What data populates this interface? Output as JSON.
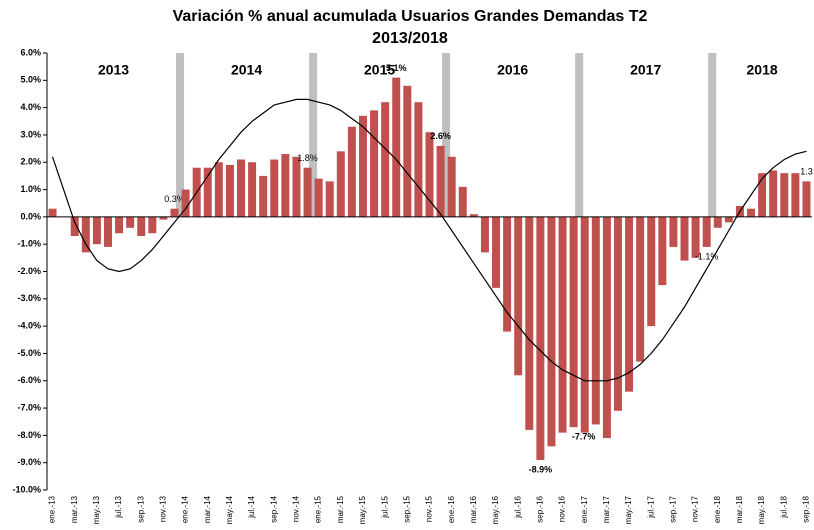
{
  "chart_data": {
    "type": "bar",
    "title": "Variación % anual acumulada Usuarios Grandes Demandas T2",
    "subtitle": "2013/2018",
    "categories": [
      "ene.-13",
      null,
      "mar.-13",
      null,
      "may.-13",
      null,
      "jul.-13",
      null,
      "sep.-13",
      null,
      "nov.-13",
      null,
      "ene.-14",
      null,
      "mar.-14",
      null,
      "may.-14",
      null,
      "jul.-14",
      null,
      "sep.-14",
      null,
      "nov.-14",
      null,
      "ene.-15",
      null,
      "mar.-15",
      null,
      "may.-15",
      null,
      "jul.-15",
      null,
      "sep.-15",
      null,
      "nov.-15",
      null,
      "ene.-16",
      null,
      "mar.-16",
      null,
      "may.-16",
      null,
      "jul.-16",
      null,
      "sep.-16",
      null,
      "nov.-16",
      null,
      "ene.-17",
      null,
      "mar.-17",
      null,
      "may.-17",
      null,
      "jul.-17",
      null,
      "sep.-17",
      null,
      "nov.-17",
      null,
      "ene.-18",
      null,
      "mar.-18",
      null,
      "may.-18",
      null,
      "jul.-18",
      null,
      "sep.-18"
    ],
    "years": [
      "2013",
      "2014",
      "2015",
      "2016",
      "2017",
      "2018"
    ],
    "series": [
      {
        "color": "#c0504d",
        "values": [
          0.3,
          0.0,
          -0.7,
          -1.3,
          -1.0,
          -1.1,
          -0.6,
          -0.4,
          -0.7,
          -0.6,
          -0.1,
          0.3,
          1.0,
          1.8,
          1.8,
          2.0,
          1.9,
          2.1,
          2.0,
          1.5,
          2.1,
          2.3,
          2.2,
          1.8,
          1.4,
          1.3,
          2.4,
          3.3,
          3.7,
          3.9,
          4.2,
          5.1,
          4.8,
          4.2,
          3.1,
          2.6,
          2.2,
          1.1,
          0.1,
          -1.3,
          -2.6,
          -4.2,
          -5.8,
          -7.8,
          -8.9,
          -8.4,
          -7.9,
          -7.7,
          -7.9,
          -7.6,
          -8.1,
          -7.1,
          -6.4,
          -5.3,
          -4.0,
          -2.5,
          -1.1,
          -1.6,
          -1.5,
          -1.1,
          -0.4,
          -0.2,
          0.4,
          0.3,
          1.6,
          1.7,
          1.6,
          1.6,
          1.3
        ],
        "value_labels": [
          null,
          null,
          null,
          null,
          null,
          null,
          null,
          null,
          null,
          null,
          null,
          "0.3%",
          null,
          null,
          null,
          null,
          null,
          null,
          null,
          null,
          null,
          null,
          null,
          "1.8%",
          null,
          null,
          null,
          null,
          null,
          null,
          null,
          "5.1%",
          null,
          null,
          null,
          "2.6%",
          null,
          null,
          null,
          null,
          null,
          null,
          null,
          null,
          "-8.9%",
          null,
          null,
          "-7.7%",
          null,
          null,
          null,
          null,
          null,
          null,
          null,
          null,
          null,
          null,
          null,
          "-1.1%",
          null,
          null,
          null,
          null,
          null,
          null,
          null,
          null,
          "1.3"
        ]
      },
      {
        "type": "line",
        "color": "#000000",
        "values": [
          2.2,
          1.0,
          -0.2,
          -1.0,
          -1.6,
          -1.9,
          -2.0,
          -1.9,
          -1.6,
          -1.2,
          -0.7,
          -0.2,
          0.3,
          0.9,
          1.5,
          2.1,
          2.6,
          3.1,
          3.5,
          3.8,
          4.1,
          4.2,
          4.3,
          4.3,
          4.2,
          4.1,
          3.9,
          3.6,
          3.3,
          2.9,
          2.5,
          2.1,
          1.6,
          1.1,
          0.6,
          0.1,
          -0.5,
          -1.1,
          -1.7,
          -2.3,
          -2.9,
          -3.5,
          -4.0,
          -4.5,
          -4.9,
          -5.3,
          -5.6,
          -5.8,
          -6.0,
          -6.0,
          -6.0,
          -5.9,
          -5.7,
          -5.4,
          -5.0,
          -4.5,
          -3.9,
          -3.3,
          -2.6,
          -1.9,
          -1.2,
          -0.5,
          0.2,
          0.8,
          1.4,
          1.8,
          2.1,
          2.3,
          2.4
        ]
      }
    ],
    "ylim": [
      -10,
      6
    ],
    "yticks": [
      {
        "value": -10,
        "label": "-10.0%"
      },
      {
        "value": -9,
        "label": "-9.0%"
      },
      {
        "value": -8,
        "label": "-8.0%"
      },
      {
        "value": -7,
        "label": "-7.0%"
      },
      {
        "value": -6,
        "label": "-6.0%"
      },
      {
        "value": -5,
        "label": "-5.0%"
      },
      {
        "value": -4,
        "label": "-4.0%"
      },
      {
        "value": -3,
        "label": "-3.0%"
      },
      {
        "value": -2,
        "label": "-2.0%"
      },
      {
        "value": -1,
        "label": "-1.0%"
      },
      {
        "value": 0,
        "label": "0.0%"
      },
      {
        "value": 1,
        "label": "1.0%"
      },
      {
        "value": 2,
        "label": "2.0%"
      },
      {
        "value": 3,
        "label": "3.0%"
      },
      {
        "value": 4,
        "label": "4.0%"
      },
      {
        "value": 5,
        "label": "5.0%"
      },
      {
        "value": 6,
        "label": "6.0%"
      }
    ],
    "grid": false
  }
}
